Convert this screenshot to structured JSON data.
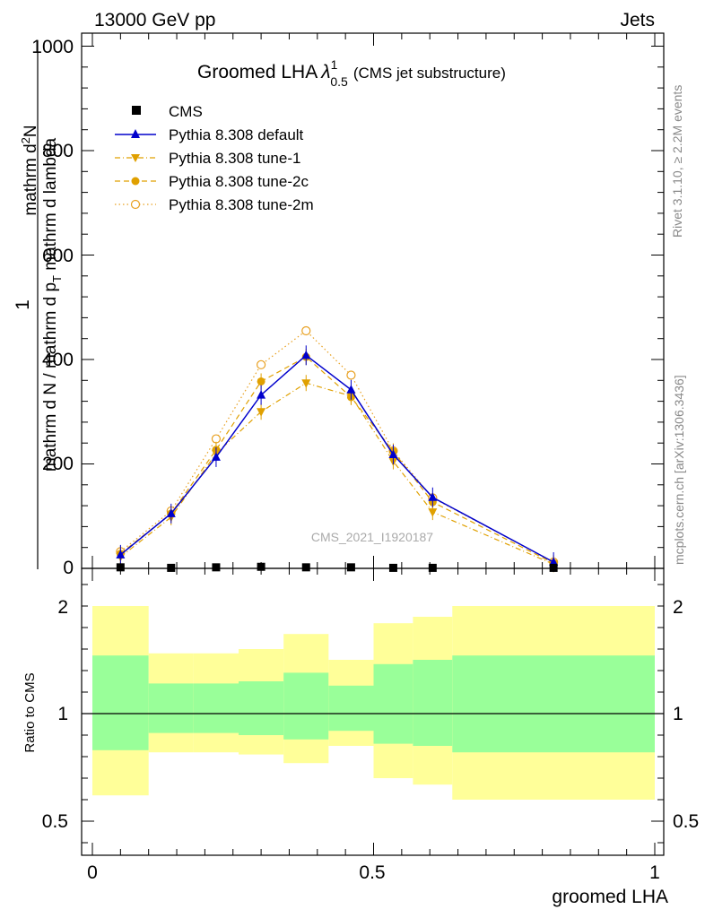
{
  "header": {
    "left": "13000 GeV pp",
    "right": "Jets"
  },
  "title": {
    "main": "Groomed LHA",
    "lambda_sup": "1",
    "lambda_sub": "0.5",
    "suffix": "(CMS jet substructure)"
  },
  "side_labels": {
    "right_top": "Rivet 3.1.10, ≥ 2.2M events",
    "right_bottom": "mcplots.cern.ch [arXiv:1306.3436]"
  },
  "watermark": "CMS_2021_I1920187",
  "main_ylabel": {
    "numerator": "1",
    "den_line": "mathrm d N / mathrm d p",
    "den_sub": "T",
    "den_tail": " mathrm d lambda",
    "right_line": "mathrm d",
    "right_sup": "2",
    "right_tail": "N",
    "right_den": "mathrm d p",
    "right_den_sub": "T",
    "right_den_tail": " mathrm d lambda"
  },
  "ratio_ylabel": "Ratio to CMS",
  "xlabel": "groomed LHA",
  "colors": {
    "blue": "#0000cc",
    "orange": "#e0a000",
    "orange2": "#e8a020",
    "green": "#99ff99",
    "yellow": "#ffff99"
  },
  "chart_data": [
    {
      "type": "line",
      "xlabel": "groomed LHA",
      "xlim": [
        0,
        1
      ],
      "ylim": [
        0,
        1000
      ],
      "x_ticks": [
        "0",
        "0.5",
        "1"
      ],
      "y_ticks": [
        "0",
        "200",
        "400",
        "600",
        "800",
        "1000"
      ],
      "legend_position": "top-left",
      "series": [
        {
          "name": "CMS",
          "x": [
            0.05,
            0.14,
            0.22,
            0.3,
            0.38,
            0.46,
            0.535,
            0.605,
            0.82
          ],
          "y": [
            2,
            1,
            2,
            3,
            2,
            2,
            1,
            1,
            1
          ],
          "marker": "square"
        },
        {
          "name": "Pythia 8.308 default",
          "x": [
            0.05,
            0.14,
            0.22,
            0.3,
            0.38,
            0.46,
            0.535,
            0.605,
            0.82
          ],
          "y": [
            26,
            105,
            213,
            332,
            408,
            342,
            218,
            136,
            12
          ],
          "marker": "triangle-up",
          "style": "solid"
        },
        {
          "name": "Pythia 8.308 tune-1",
          "x": [
            0.05,
            0.14,
            0.22,
            0.3,
            0.38,
            0.46,
            0.535,
            0.605,
            0.82
          ],
          "y": [
            22,
            98,
            220,
            300,
            355,
            330,
            205,
            108,
            8
          ],
          "marker": "triangle-down",
          "style": "dashdot"
        },
        {
          "name": "Pythia 8.308 tune-2c",
          "x": [
            0.05,
            0.14,
            0.22,
            0.3,
            0.38,
            0.46,
            0.535,
            0.605,
            0.82
          ],
          "y": [
            28,
            105,
            227,
            358,
            405,
            328,
            224,
            127,
            10
          ],
          "marker": "circle",
          "style": "dashed"
        },
        {
          "name": "Pythia 8.308 tune-2m",
          "x": [
            0.05,
            0.14,
            0.22,
            0.3,
            0.38,
            0.46,
            0.535,
            0.605,
            0.82
          ],
          "y": [
            32,
            110,
            248,
            390,
            455,
            370,
            225,
            135,
            12
          ],
          "marker": "circle-open",
          "style": "dotted"
        }
      ]
    },
    {
      "type": "area",
      "ylabel": "Ratio to CMS",
      "xlabel": "groomed LHA",
      "xlim": [
        0,
        1
      ],
      "ylim": [
        0.35,
        2.35
      ],
      "x_ticks": [
        "0",
        "0.5",
        "1"
      ],
      "y_ticks": [
        "0.5",
        "1",
        "2"
      ],
      "reference_line": 1,
      "bands": [
        {
          "x0": 0.0,
          "x1": 0.1,
          "y_lo": 0.62,
          "y_hi": 1.5,
          "s_lo": 0.83,
          "s_hi": 1.27
        },
        {
          "x0": 0.1,
          "x1": 0.18,
          "y_lo": 0.82,
          "y_hi": 1.28,
          "s_lo": 0.91,
          "s_hi": 1.14
        },
        {
          "x0": 0.18,
          "x1": 0.26,
          "y_lo": 0.82,
          "y_hi": 1.28,
          "s_lo": 0.91,
          "s_hi": 1.14
        },
        {
          "x0": 0.26,
          "x1": 0.34,
          "y_lo": 0.81,
          "y_hi": 1.3,
          "s_lo": 0.9,
          "s_hi": 1.15
        },
        {
          "x0": 0.34,
          "x1": 0.42,
          "y_lo": 0.77,
          "y_hi": 1.37,
          "s_lo": 0.88,
          "s_hi": 1.19
        },
        {
          "x0": 0.42,
          "x1": 0.5,
          "y_lo": 0.85,
          "y_hi": 1.25,
          "s_lo": 0.92,
          "s_hi": 1.13
        },
        {
          "x0": 0.5,
          "x1": 0.57,
          "y_lo": 0.7,
          "y_hi": 1.42,
          "s_lo": 0.86,
          "s_hi": 1.23
        },
        {
          "x0": 0.57,
          "x1": 0.64,
          "y_lo": 0.67,
          "y_hi": 1.45,
          "s_lo": 0.85,
          "s_hi": 1.25
        },
        {
          "x0": 0.64,
          "x1": 1.0,
          "y_lo": 0.6,
          "y_hi": 1.5,
          "s_lo": 0.82,
          "s_hi": 1.27
        }
      ]
    }
  ]
}
